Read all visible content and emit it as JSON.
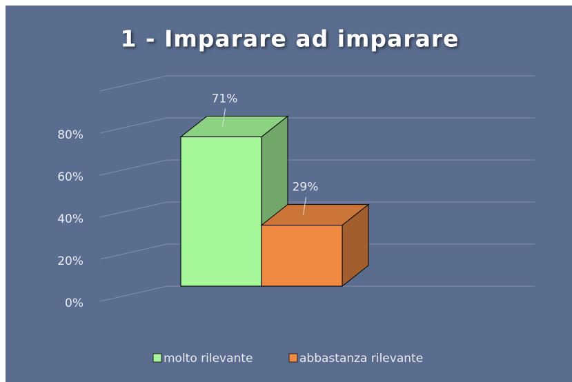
{
  "chart_data": {
    "type": "bar3d",
    "title": "1 - Imparare ad imparare",
    "categories": [
      null
    ],
    "series": [
      {
        "name": "molto rilevante",
        "color": "#a6f79a",
        "values": [
          71
        ],
        "value_labels": [
          "71%"
        ]
      },
      {
        "name": "abbastanza rilevante",
        "color": "#f08a42",
        "values": [
          29
        ],
        "value_labels": [
          "29%"
        ]
      }
    ],
    "ylim": [
      0,
      100
    ],
    "yticks": [
      {
        "value": 0,
        "label": "0%"
      },
      {
        "value": 20,
        "label": "20%"
      },
      {
        "value": 40,
        "label": "40%"
      },
      {
        "value": 60,
        "label": "60%"
      },
      {
        "value": 80,
        "label": "80%"
      }
    ],
    "grid": true,
    "legend": "bottom"
  }
}
